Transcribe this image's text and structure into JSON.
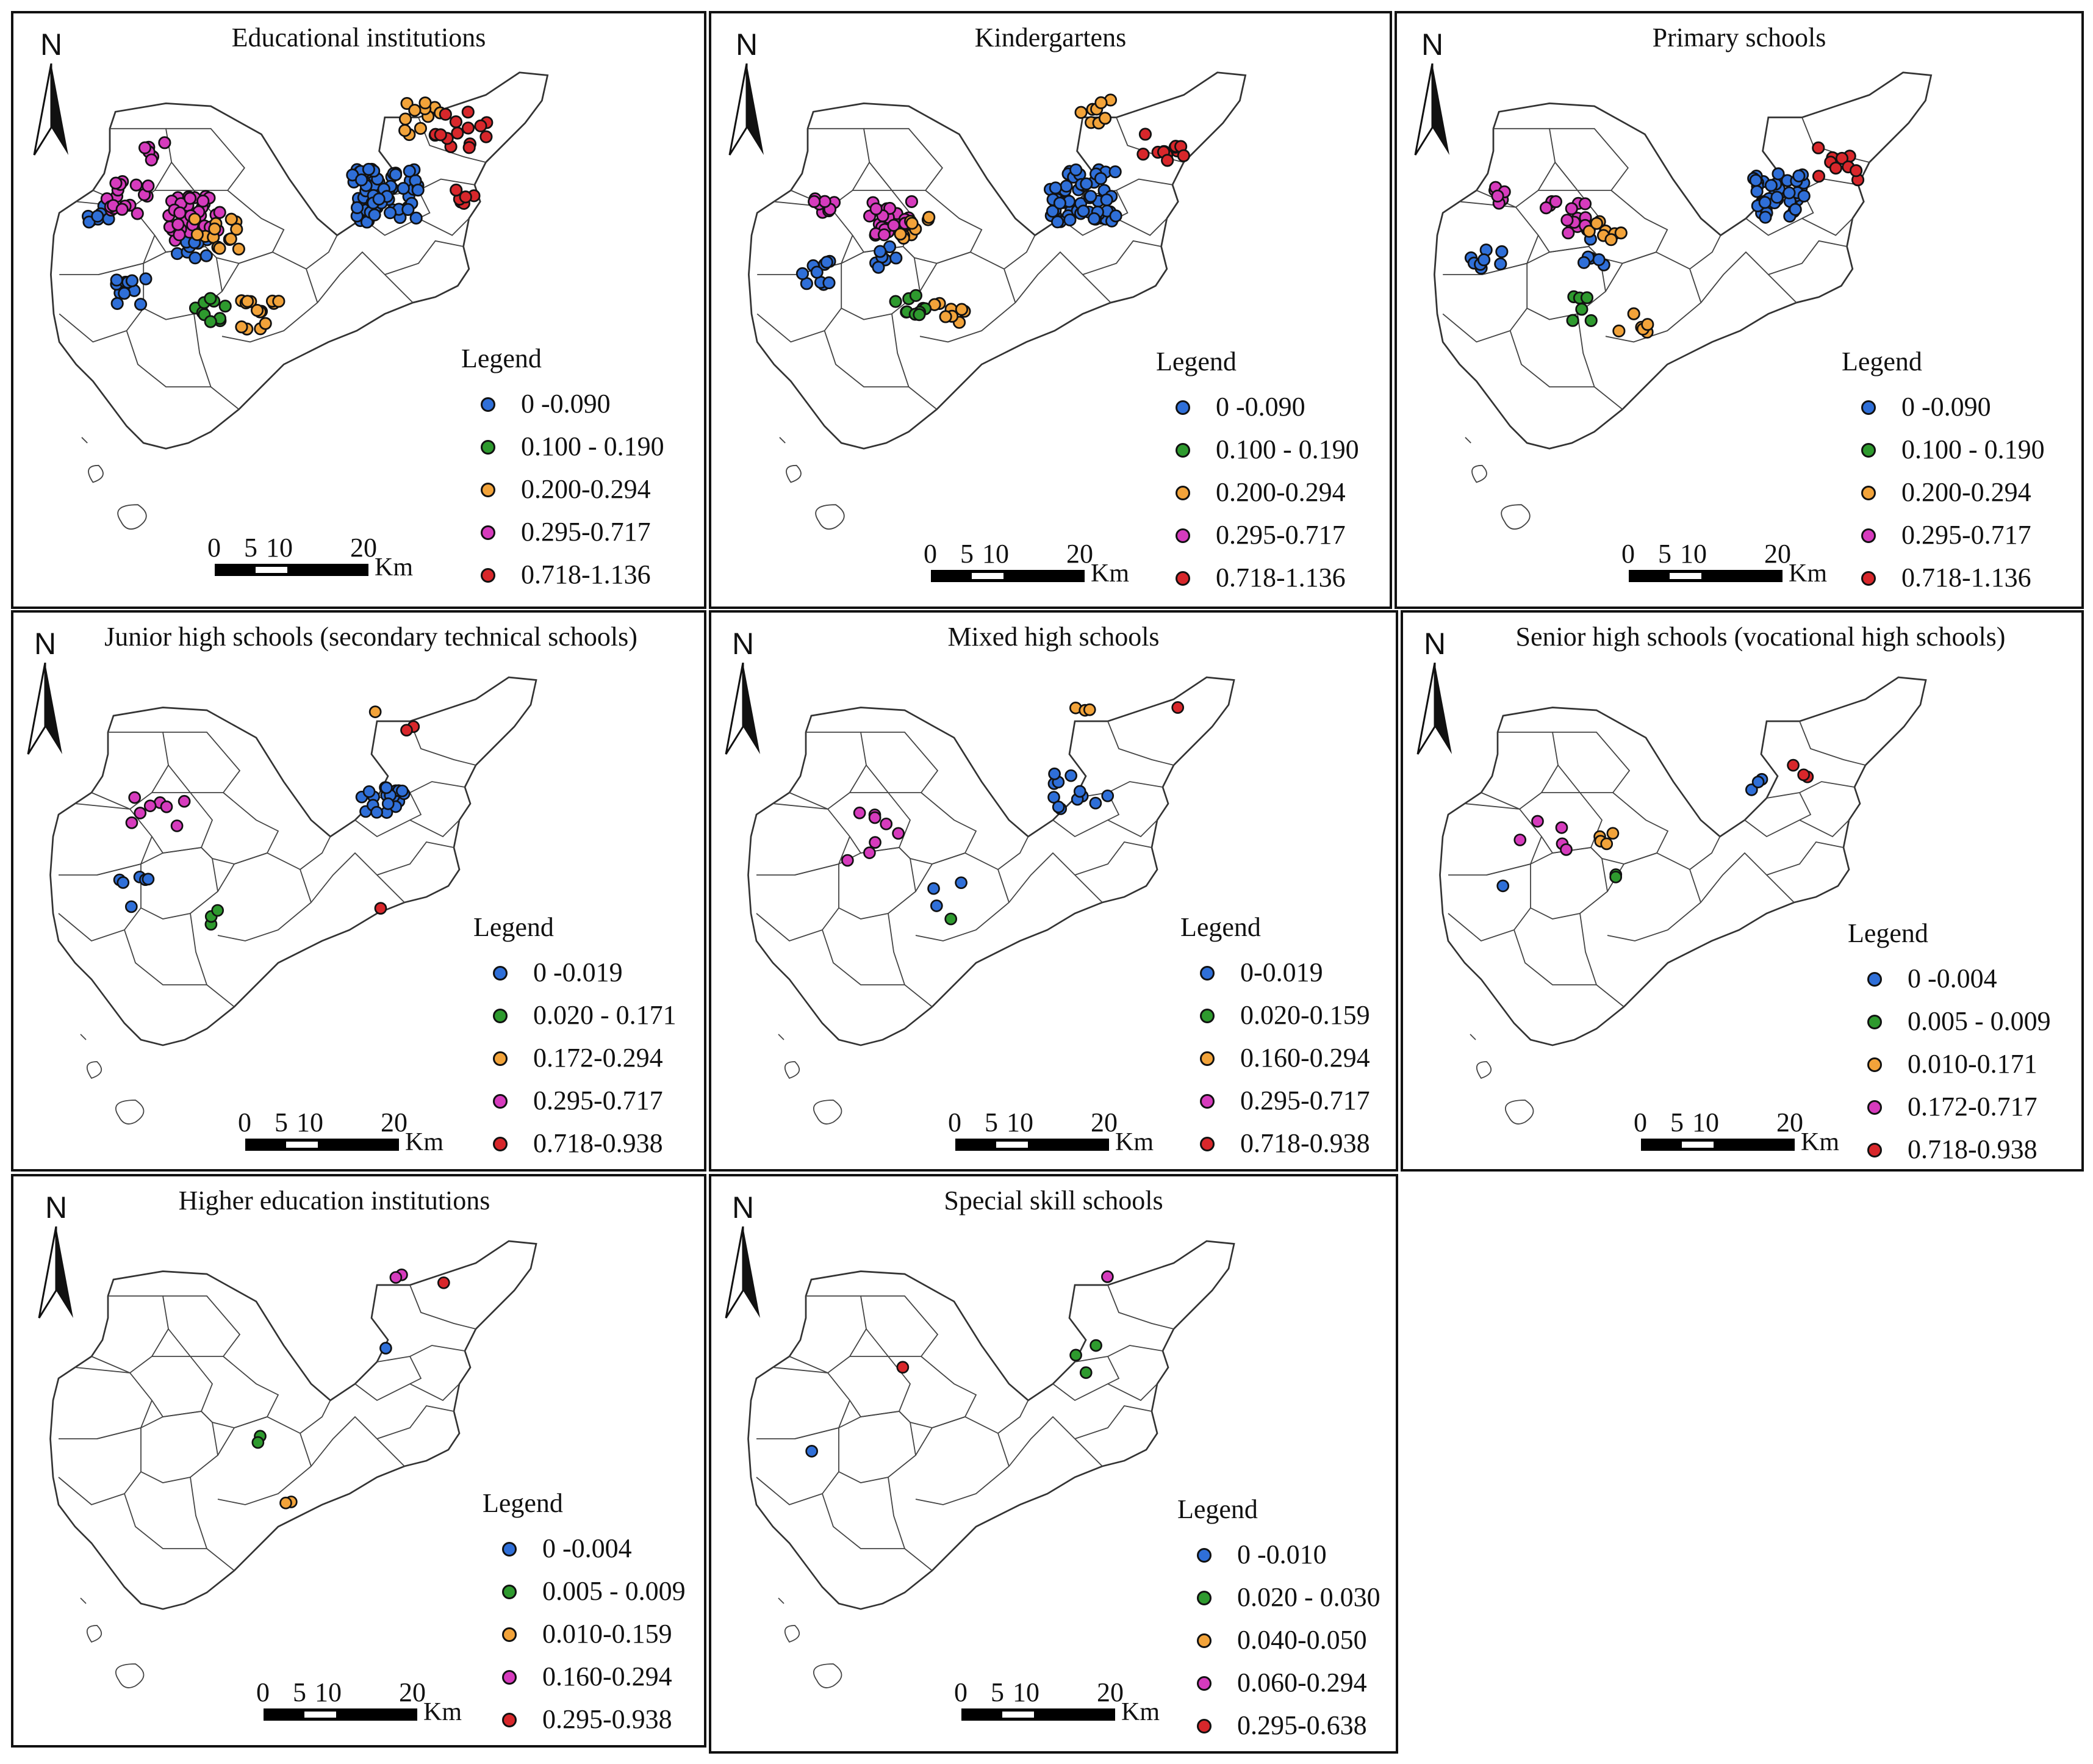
{
  "colors": {
    "blue": "#2f6fd8",
    "green": "#2e9a2e",
    "orange": "#f2a33a",
    "magenta": "#d63bbd",
    "red": "#d8272b",
    "border": "#111111"
  },
  "common": {
    "north": "N",
    "legend_title": "Legend",
    "scale_ticks": [
      "0",
      "5",
      "10",
      "20"
    ],
    "scale_unit": "Km"
  },
  "panels": [
    {
      "title": "Educational institutions",
      "legend": [
        "0 -0.090",
        "0.100 - 0.190",
        "0.200-0.294",
        "0.295-0.717",
        "0.718-1.136"
      ]
    },
    {
      "title": "Kindergartens",
      "legend": [
        "0 -0.090",
        "0.100 - 0.190",
        "0.200-0.294",
        "0.295-0.717",
        "0.718-1.136"
      ]
    },
    {
      "title": "Primary schools",
      "legend": [
        "0 -0.090",
        "0.100 - 0.190",
        "0.200-0.294",
        "0.295-0.717",
        "0.718-1.136"
      ]
    },
    {
      "title": "Junior high schools (secondary technical schools)",
      "legend": [
        "0 -0.019",
        "0.020 - 0.171",
        "0.172-0.294",
        "0.295-0.717",
        "0.718-0.938"
      ]
    },
    {
      "title": "Mixed high schools",
      "legend": [
        "0-0.019",
        "0.020-0.159",
        "0.160-0.294",
        "0.295-0.717",
        "0.718-0.938"
      ]
    },
    {
      "title": "Senior high schools (vocational high schools)",
      "legend": [
        "0 -0.004",
        "0.005 - 0.009",
        "0.010-0.171",
        "0.172-0.717",
        "0.718-0.938"
      ]
    },
    {
      "title": "Higher education institutions",
      "legend": [
        "0 -0.004",
        "0.005 - 0.009",
        "0.010-0.159",
        "0.160-0.294",
        "0.295-0.938"
      ]
    },
    {
      "title": "Special skill schools",
      "legend": [
        "0 -0.010",
        "0.020 - 0.030",
        "0.040-0.050",
        "0.060-0.294",
        "0.295-0.638"
      ]
    }
  ]
}
